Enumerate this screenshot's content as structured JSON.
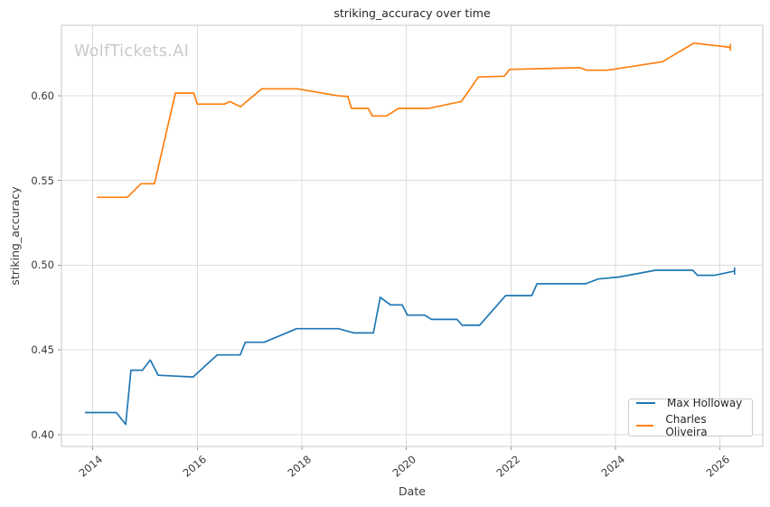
{
  "page": {
    "watermark": "WolfTickets.AI"
  },
  "chart_data": {
    "type": "line",
    "title": "striking_accuracy over time",
    "xlabel": "Date",
    "ylabel": "striking_accuracy",
    "xlim": [
      2013.4,
      2026.82
    ],
    "ylim": [
      0.393,
      0.6415
    ],
    "grid": true,
    "legend_position": "lower right",
    "x_tick_values": [
      2014,
      2016,
      2018,
      2020,
      2022,
      2024,
      2026
    ],
    "x_tick_labels": [
      "2014",
      "2016",
      "2018",
      "2020",
      "2022",
      "2024",
      "2026"
    ],
    "y_tick_values": [
      0.4,
      0.45,
      0.5,
      0.55,
      0.6
    ],
    "y_tick_labels": [
      "0.40",
      "0.45",
      "0.50",
      "0.55",
      "0.60"
    ],
    "grid_color": "#dcdcdc",
    "spine_color": "#c7c7c7",
    "tick_color": "#999999",
    "series": [
      {
        "name": "Max Holloway",
        "color": "#1f77b4",
        "points": [
          [
            2013.85,
            0.413
          ],
          [
            2014.45,
            0.413
          ],
          [
            2014.63,
            0.406
          ],
          [
            2014.73,
            0.438
          ],
          [
            2014.95,
            0.438
          ],
          [
            2015.1,
            0.444
          ],
          [
            2015.25,
            0.435
          ],
          [
            2015.92,
            0.434
          ],
          [
            2016.38,
            0.447
          ],
          [
            2016.82,
            0.447
          ],
          [
            2016.92,
            0.4545
          ],
          [
            2017.28,
            0.4545
          ],
          [
            2017.9,
            0.4625
          ],
          [
            2018.7,
            0.4625
          ],
          [
            2019.0,
            0.46
          ],
          [
            2019.37,
            0.46
          ],
          [
            2019.5,
            0.481
          ],
          [
            2019.7,
            0.4765
          ],
          [
            2019.92,
            0.4765
          ],
          [
            2020.02,
            0.4705
          ],
          [
            2020.35,
            0.4705
          ],
          [
            2020.48,
            0.468
          ],
          [
            2020.97,
            0.468
          ],
          [
            2021.07,
            0.4645
          ],
          [
            2021.4,
            0.4645
          ],
          [
            2021.9,
            0.482
          ],
          [
            2022.4,
            0.482
          ],
          [
            2022.5,
            0.489
          ],
          [
            2023.43,
            0.489
          ],
          [
            2023.67,
            0.4918
          ],
          [
            2024.07,
            0.493
          ],
          [
            2024.77,
            0.497
          ],
          [
            2025.48,
            0.497
          ],
          [
            2025.57,
            0.494
          ],
          [
            2025.9,
            0.494
          ],
          [
            2026.28,
            0.4965
          ]
        ]
      },
      {
        "name": "Charles Oliveira",
        "color": "#ff7f0e",
        "points": [
          [
            2014.08,
            0.54
          ],
          [
            2014.66,
            0.54
          ],
          [
            2014.92,
            0.548
          ],
          [
            2015.18,
            0.548
          ],
          [
            2015.58,
            0.6015
          ],
          [
            2015.93,
            0.6015
          ],
          [
            2016.0,
            0.595
          ],
          [
            2016.52,
            0.595
          ],
          [
            2016.62,
            0.5965
          ],
          [
            2016.83,
            0.5935
          ],
          [
            2017.23,
            0.604
          ],
          [
            2017.92,
            0.604
          ],
          [
            2018.67,
            0.6
          ],
          [
            2018.88,
            0.5995
          ],
          [
            2018.95,
            0.5925
          ],
          [
            2019.27,
            0.5925
          ],
          [
            2019.35,
            0.588
          ],
          [
            2019.62,
            0.588
          ],
          [
            2019.85,
            0.5925
          ],
          [
            2020.42,
            0.5925
          ],
          [
            2021.05,
            0.5965
          ],
          [
            2021.38,
            0.611
          ],
          [
            2021.87,
            0.6115
          ],
          [
            2021.98,
            0.6155
          ],
          [
            2023.32,
            0.6165
          ],
          [
            2023.45,
            0.615
          ],
          [
            2023.85,
            0.615
          ],
          [
            2024.9,
            0.62
          ],
          [
            2025.5,
            0.631
          ],
          [
            2026.2,
            0.6285
          ]
        ]
      }
    ]
  }
}
